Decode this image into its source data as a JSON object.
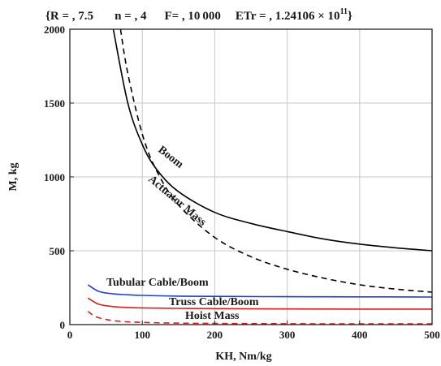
{
  "chart_data": {
    "type": "line",
    "title": "{R = , 7.5      n = , 4      F= , 10 000     ETr = , 1.24106 × 10¹¹}",
    "title_parts": {
      "r": "R = , 7.5",
      "n": "n = , 4",
      "f": "F= , 10 000",
      "etr_base": "ETr = , 1.24106 × 10",
      "etr_exp": "11"
    },
    "xlabel": "KH, Nm/kg",
    "ylabel": "M, kg",
    "xlim": [
      0,
      500
    ],
    "ylim": [
      0,
      2000
    ],
    "x_ticks": [
      "0",
      "100",
      "200",
      "300",
      "400",
      "500"
    ],
    "y_ticks": [
      "0",
      "500",
      "1000",
      "1500",
      "2000"
    ],
    "x_tick_values": [
      0,
      100,
      200,
      300,
      400,
      500
    ],
    "y_tick_values": [
      0,
      500,
      1000,
      1500,
      2000
    ],
    "grid": true,
    "series": [
      {
        "name": "Boom",
        "color": "#000000",
        "dash": "solid",
        "x": [
          60,
          80,
          100,
          120,
          150,
          200,
          250,
          300,
          350,
          400,
          450,
          500
        ],
        "y": [
          2000,
          1500,
          1220,
          1050,
          900,
          760,
          685,
          630,
          580,
          545,
          520,
          500
        ]
      },
      {
        "name": "Actuator Mass",
        "color": "#000000",
        "dash": "dashed",
        "x": [
          70,
          80,
          100,
          120,
          150,
          200,
          250,
          300,
          350,
          400,
          450,
          500
        ],
        "y": [
          2000,
          1700,
          1290,
          1040,
          810,
          590,
          460,
          375,
          315,
          270,
          240,
          220
        ]
      },
      {
        "name": "Tubular Cable/Boom",
        "color": "#1f3fd6",
        "dash": "solid",
        "x": [
          25,
          40,
          60,
          80,
          100,
          150,
          200,
          300,
          400,
          500
        ],
        "y": [
          270,
          225,
          208,
          202,
          198,
          193,
          191,
          189,
          188,
          187
        ]
      },
      {
        "name": "Truss Cable/Boom",
        "color": "#d42020",
        "dash": "solid",
        "x": [
          25,
          40,
          60,
          80,
          100,
          150,
          200,
          300,
          400,
          500
        ],
        "y": [
          180,
          138,
          122,
          116,
          113,
          110,
          108,
          106,
          105,
          105
        ]
      },
      {
        "name": "Hoist Mass",
        "color": "#d42020",
        "dash": "dashed",
        "x": [
          25,
          35,
          50,
          70,
          100,
          150,
          200,
          300,
          400,
          500
        ],
        "y": [
          90,
          55,
          35,
          22,
          15,
          10,
          8,
          6,
          5,
          5
        ]
      }
    ]
  }
}
